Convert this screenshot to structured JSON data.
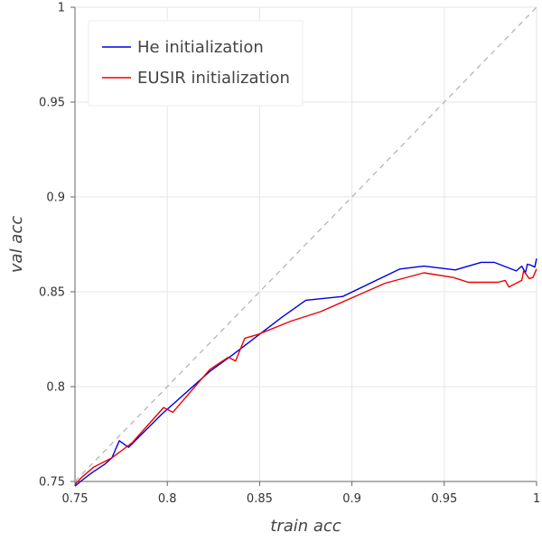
{
  "chart_data": {
    "type": "line",
    "title": "",
    "xlabel": "train acc",
    "ylabel": "val acc",
    "xlim": [
      0.75,
      1.0
    ],
    "ylim": [
      0.75,
      1.0
    ],
    "xticks": [
      0.75,
      0.8,
      0.85,
      0.9,
      0.95,
      1.0
    ],
    "xtick_labels": [
      "0.75",
      "0.8",
      "0.85",
      "0.9",
      "0.95",
      "1"
    ],
    "yticks": [
      0.75,
      0.8,
      0.85,
      0.9,
      0.95,
      1.0
    ],
    "ytick_labels": [
      "0.75",
      "0.8",
      "0.85",
      "0.9",
      "0.95",
      "1"
    ],
    "grid": true,
    "legend_position": "top-left",
    "reference_line": {
      "style": "dashed",
      "color": "#b0b0b0",
      "from": [
        0.75,
        0.75
      ],
      "to": [
        1.0,
        1.0
      ]
    },
    "series": [
      {
        "name": "He initialization",
        "color": "#0000dd",
        "points": [
          [
            0.75,
            0.7475
          ],
          [
            0.753,
            0.75
          ],
          [
            0.759,
            0.7545
          ],
          [
            0.766,
            0.759
          ],
          [
            0.77,
            0.7625
          ],
          [
            0.774,
            0.7715
          ],
          [
            0.779,
            0.768
          ],
          [
            0.797,
            0.7855
          ],
          [
            0.823,
            0.808
          ],
          [
            0.835,
            0.8165
          ],
          [
            0.862,
            0.8365
          ],
          [
            0.875,
            0.8455
          ],
          [
            0.895,
            0.8475
          ],
          [
            0.926,
            0.862
          ],
          [
            0.939,
            0.8635
          ],
          [
            0.956,
            0.8615
          ],
          [
            0.97,
            0.8655
          ],
          [
            0.977,
            0.8655
          ],
          [
            0.989,
            0.861
          ],
          [
            0.992,
            0.8635
          ],
          [
            0.994,
            0.86
          ],
          [
            0.995,
            0.8645
          ],
          [
            0.997,
            0.864
          ],
          [
            0.999,
            0.863
          ],
          [
            1.0,
            0.8675
          ]
        ]
      },
      {
        "name": "EUSIR initialization",
        "color": "#ee0000",
        "points": [
          [
            0.75,
            0.7485
          ],
          [
            0.754,
            0.7525
          ],
          [
            0.76,
            0.7575
          ],
          [
            0.77,
            0.7625
          ],
          [
            0.781,
            0.7705
          ],
          [
            0.798,
            0.789
          ],
          [
            0.803,
            0.7865
          ],
          [
            0.823,
            0.809
          ],
          [
            0.833,
            0.8155
          ],
          [
            0.837,
            0.8135
          ],
          [
            0.842,
            0.8255
          ],
          [
            0.849,
            0.8275
          ],
          [
            0.867,
            0.8345
          ],
          [
            0.883,
            0.8395
          ],
          [
            0.918,
            0.8545
          ],
          [
            0.939,
            0.86
          ],
          [
            0.955,
            0.8575
          ],
          [
            0.963,
            0.855
          ],
          [
            0.979,
            0.855
          ],
          [
            0.983,
            0.856
          ],
          [
            0.985,
            0.8525
          ],
          [
            0.992,
            0.856
          ],
          [
            0.993,
            0.861
          ],
          [
            0.996,
            0.857
          ],
          [
            0.998,
            0.8575
          ],
          [
            1.0,
            0.862
          ]
        ]
      }
    ]
  }
}
